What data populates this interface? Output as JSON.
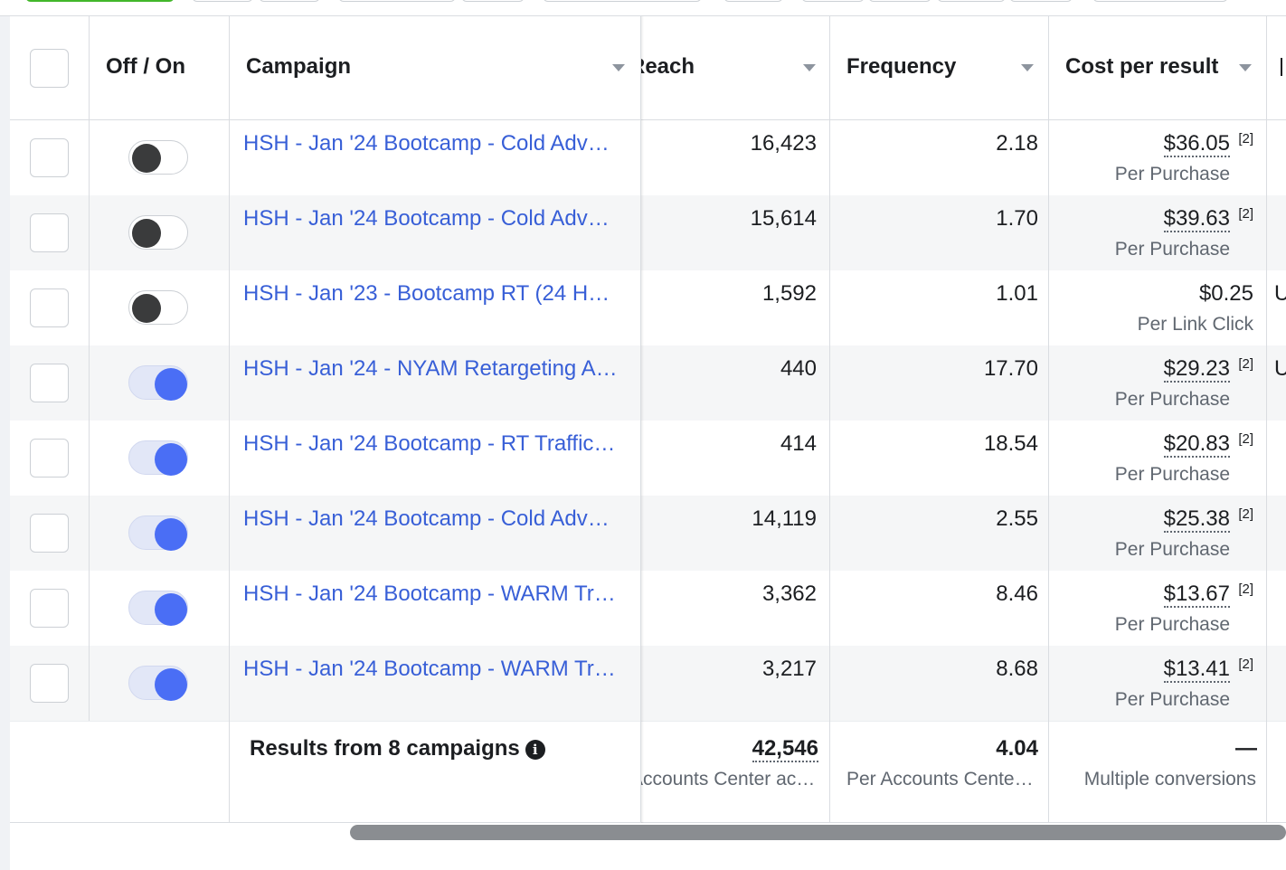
{
  "header": {
    "off_on": "Off / On",
    "campaign": "Campaign",
    "reach": "Reach",
    "frequency": "Frequency",
    "cost_per_result": "Cost per result"
  },
  "rows": [
    {
      "campaign": "HSH - Jan '24 Bootcamp - Cold Adv…",
      "enabled": false,
      "reach": "16,423",
      "frequency": "2.18",
      "cost": "$36.05",
      "cost_note": "[2]",
      "cost_type": "Per Purchase",
      "extra": ""
    },
    {
      "campaign": "HSH - Jan '24 Bootcamp - Cold Adv…",
      "enabled": false,
      "reach": "15,614",
      "frequency": "1.70",
      "cost": "$39.63",
      "cost_note": "[2]",
      "cost_type": "Per Purchase",
      "extra": ""
    },
    {
      "campaign": "HSH - Jan '23 - Bootcamp RT (24 H…",
      "enabled": false,
      "reach": "1,592",
      "frequency": "1.01",
      "cost": "$0.25",
      "cost_note": "",
      "cost_type": "Per Link Click",
      "extra": "U"
    },
    {
      "campaign": "HSH - Jan '24 - NYAM Retargeting A…",
      "enabled": true,
      "reach": "440",
      "frequency": "17.70",
      "cost": "$29.23",
      "cost_note": "[2]",
      "cost_type": "Per Purchase",
      "extra": "U"
    },
    {
      "campaign": "HSH - Jan '24 Bootcamp - RT Traffic…",
      "enabled": true,
      "reach": "414",
      "frequency": "18.54",
      "cost": "$20.83",
      "cost_note": "[2]",
      "cost_type": "Per Purchase",
      "extra": ""
    },
    {
      "campaign": "HSH - Jan '24 Bootcamp - Cold Adv…",
      "enabled": true,
      "reach": "14,119",
      "frequency": "2.55",
      "cost": "$25.38",
      "cost_note": "[2]",
      "cost_type": "Per Purchase",
      "extra": ""
    },
    {
      "campaign": "HSH - Jan '24 Bootcamp - WARM Tr…",
      "enabled": true,
      "reach": "3,362",
      "frequency": "8.46",
      "cost": "$13.67",
      "cost_note": "[2]",
      "cost_type": "Per Purchase",
      "extra": ""
    },
    {
      "campaign": "HSH - Jan '24 Bootcamp - WARM Tr…",
      "enabled": true,
      "reach": "3,217",
      "frequency": "8.68",
      "cost": "$13.41",
      "cost_note": "[2]",
      "cost_type": "Per Purchase",
      "extra": ""
    }
  ],
  "summary": {
    "label": "Results from 8 campaigns",
    "reach_total": "42,546",
    "reach_sub": "Accounts Center ac…",
    "frequency_total": "4.04",
    "frequency_sub": "Per Accounts Cente…",
    "cost_total": "—",
    "cost_sub": "Multiple conversions"
  },
  "icons": {
    "info": "info-icon",
    "sort": "sort-caret-icon"
  },
  "colors": {
    "link": "#385fd7",
    "toggle_on": "#4a6ef5",
    "toggle_off": "#3a3b3c",
    "row_alt": "#f5f6f7"
  }
}
